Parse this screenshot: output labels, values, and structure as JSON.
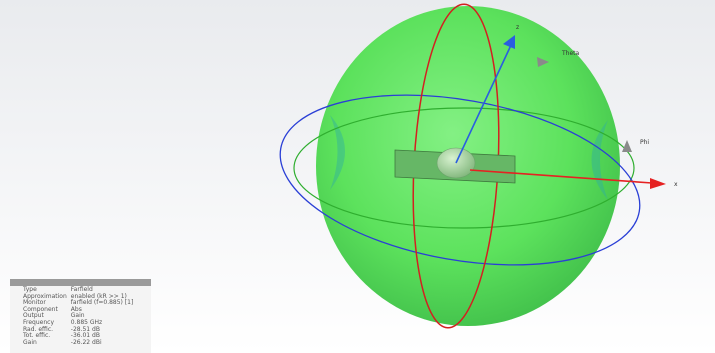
{
  "axes": {
    "x_label": "x",
    "z_label": "z",
    "theta_label": "Theta",
    "phi_label": "Phi"
  },
  "colors": {
    "pattern_fill": "#44dd44",
    "theta_ring": "#d32020",
    "phi_ring": "#2a3fd6",
    "horizon_ring": "#2fae2f",
    "x_axis": "#e52222",
    "z_axis": "#2a5ee0",
    "panel_header": "#9a9a9a"
  },
  "info_panel": {
    "rows": [
      {
        "key": "Type",
        "value": "Farfield"
      },
      {
        "key": "Approximation",
        "value": "enabled (kR >> 1)"
      },
      {
        "key": "Monitor",
        "value": "farfield (f=0.885) [1]"
      },
      {
        "key": "Component",
        "value": "Abs"
      },
      {
        "key": "Output",
        "value": "Gain"
      },
      {
        "key": "Frequency",
        "value": "0.885 GHz"
      },
      {
        "key": "Rad. effic.",
        "value": "-28.51 dB"
      },
      {
        "key": "Tot. effic.",
        "value": "-36.01 dB"
      },
      {
        "key": "Gain",
        "value": "-26.22 dBi"
      }
    ]
  }
}
